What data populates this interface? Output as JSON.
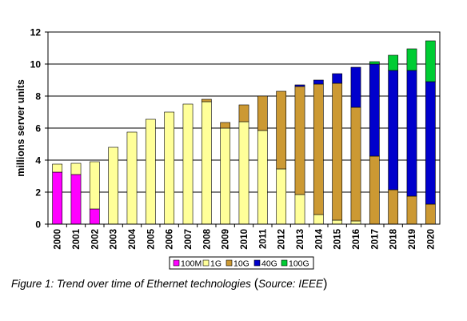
{
  "caption": {
    "text": "Figure 1: Trend over time of Ethernet technologies",
    "source": "Source: IEEE"
  },
  "chart_data": {
    "type": "bar",
    "stacked": true,
    "ylabel": "millions server units",
    "xlabel": "",
    "ylim": [
      0,
      12
    ],
    "yticks": [
      0,
      2,
      4,
      6,
      8,
      10,
      12
    ],
    "grid": "horizontal",
    "legend_position": "bottom",
    "categories": [
      "2000",
      "2001",
      "2002",
      "2003",
      "2004",
      "2005",
      "2006",
      "2007",
      "2008",
      "2009",
      "2010",
      "2011",
      "2012",
      "2013",
      "2014",
      "2015",
      "2016",
      "2017",
      "2018",
      "2019",
      "2020"
    ],
    "series": [
      {
        "name": "100M",
        "color": "#ff00ff",
        "values": [
          3.25,
          3.1,
          0.95,
          0,
          0,
          0,
          0,
          0,
          0,
          0,
          0,
          0,
          0,
          0,
          0,
          0,
          0,
          0,
          0,
          0,
          0
        ]
      },
      {
        "name": "1G",
        "color": "#ffff99",
        "values": [
          0.5,
          0.7,
          2.95,
          4.8,
          5.75,
          6.55,
          7.0,
          7.5,
          7.65,
          6.0,
          6.4,
          5.85,
          3.45,
          1.85,
          0.6,
          0.25,
          0.2,
          0,
          0,
          0,
          0
        ]
      },
      {
        "name": "10G",
        "color": "#cc9933",
        "values": [
          0,
          0,
          0,
          0,
          0,
          0,
          0,
          0,
          0.15,
          0.35,
          1.05,
          2.15,
          4.85,
          6.75,
          8.15,
          8.55,
          7.1,
          4.25,
          2.15,
          1.75,
          1.25
        ]
      },
      {
        "name": "40G",
        "color": "#0000cc",
        "values": [
          0,
          0,
          0,
          0,
          0,
          0,
          0,
          0,
          0,
          0,
          0,
          0,
          0,
          0.1,
          0.25,
          0.6,
          2.5,
          5.75,
          7.45,
          7.85,
          7.65
        ]
      },
      {
        "name": "100G",
        "color": "#00cc33",
        "values": [
          0,
          0,
          0,
          0,
          0,
          0,
          0,
          0,
          0,
          0,
          0,
          0,
          0,
          0,
          0,
          0,
          0,
          0.15,
          0.95,
          1.35,
          2.55
        ]
      }
    ]
  }
}
